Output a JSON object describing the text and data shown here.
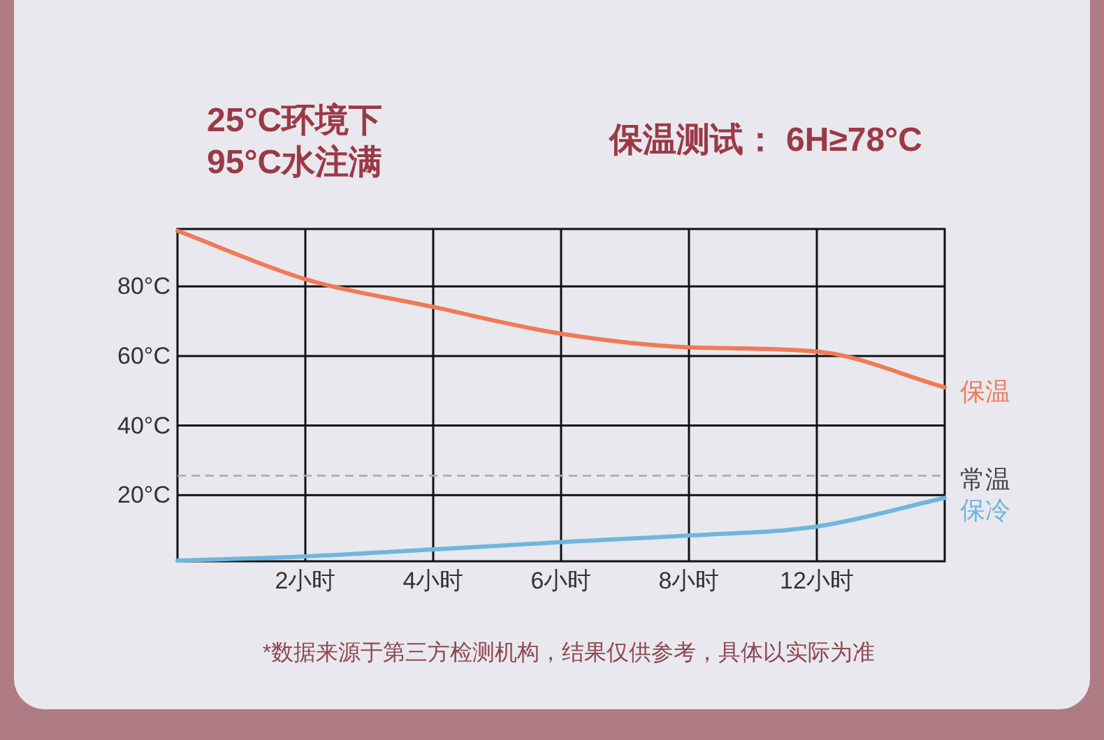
{
  "chart_data": {
    "type": "line",
    "title": "25°C环境下\n95°C水注满",
    "subtitle": "保温测试： 6H≥78°C",
    "annotations": [
      "*数据来源于第三方检测机构，结果仅供参考，具体以实际为准"
    ],
    "categories": [
      null,
      "2小时",
      "4小时",
      "6小时",
      "8小时",
      "12小时",
      null
    ],
    "series": [
      {
        "name": "保温",
        "color": "#f07a58",
        "values": [
          96,
          82.1,
          74.1,
          66.4,
          62.5,
          61.3,
          51
        ]
      },
      {
        "name": "保冷",
        "color": "#6fb6de",
        "values": [
          1.2,
          2.4,
          4.4,
          6.5,
          8.4,
          11,
          19.2
        ]
      }
    ],
    "ylim": [
      1,
      96.5
    ],
    "yticks": [
      {
        "value": 20,
        "label": "20°C"
      },
      {
        "value": 40,
        "label": "40°C"
      },
      {
        "value": 60,
        "label": "60°C"
      },
      {
        "value": 80,
        "label": "80°C"
      }
    ],
    "grid": true,
    "line_style": "solid",
    "ref_lines": [
      {
        "axis": "y",
        "value": 25.6,
        "label": "常温",
        "color": "#a9adbe",
        "line_style": "dashed"
      }
    ]
  }
}
